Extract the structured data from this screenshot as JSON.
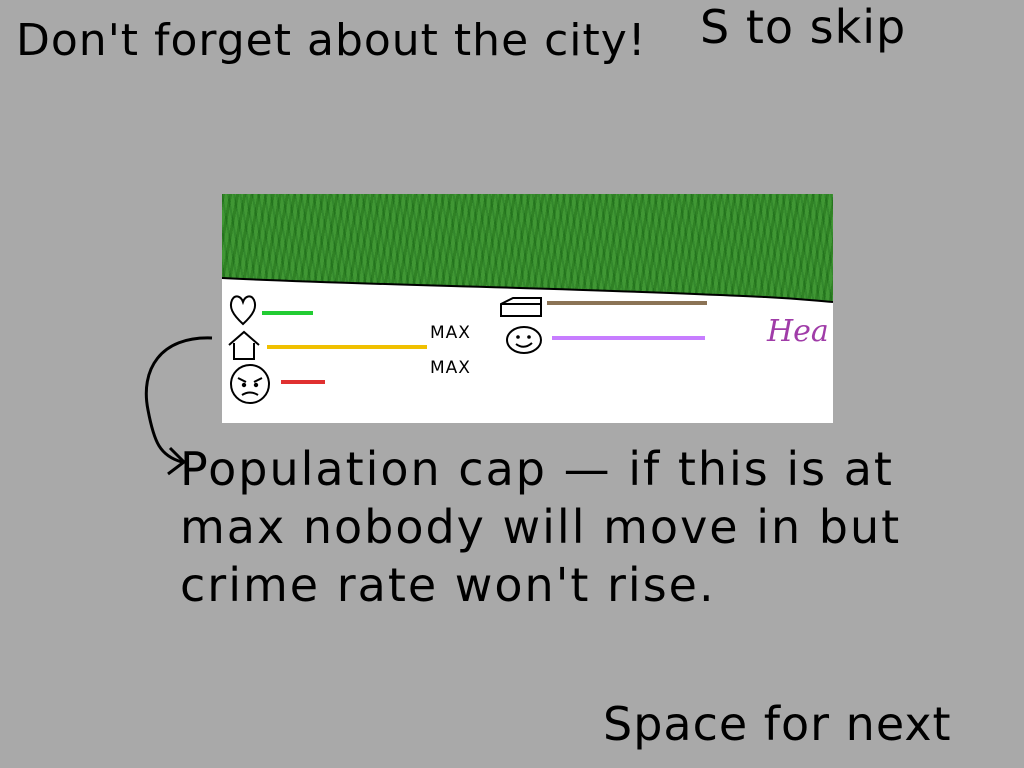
{
  "hints": {
    "reminder": "Don't forget about the city!",
    "skip": "S to skip",
    "next": "Space for next"
  },
  "explanation": "Population cap — if this is at max nobody will move in but crime rate won't rise.",
  "stats": {
    "max_labels": [
      "MAX",
      "MAX"
    ],
    "health": {
      "icon": "heart-icon",
      "color": "#22cc33",
      "level": 0.3
    },
    "population": {
      "icon": "house-icon",
      "color": "#f0c000",
      "level": 1.0
    },
    "crime": {
      "icon": "angry-face-icon",
      "color": "#e03030",
      "level": 0.25
    },
    "resources": {
      "icon": "log-icon",
      "color": "#8b7355",
      "level": 0.95
    },
    "happiness": {
      "icon": "smiley-face-icon",
      "color": "#c77dff",
      "level": 0.95
    }
  },
  "signature": "Hea"
}
